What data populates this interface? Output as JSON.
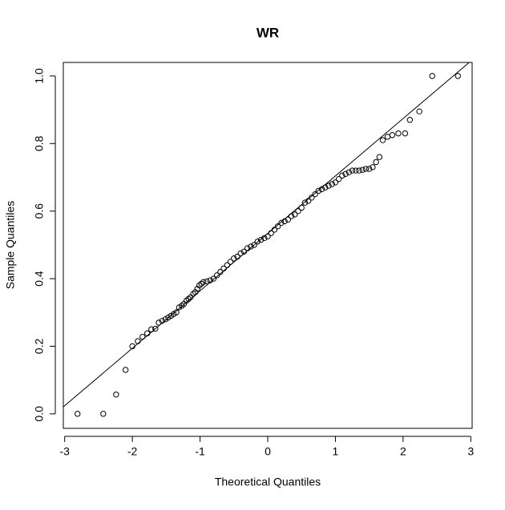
{
  "chart_data": {
    "type": "scatter",
    "title": "WR",
    "x_label": "Theoretical Quantiles",
    "y_label": "Sample Quantiles",
    "xlim": [
      -3.02,
      3.02
    ],
    "ylim": [
      -0.043,
      1.04
    ],
    "xticks": [
      -3,
      -2,
      -1,
      0,
      1,
      2,
      3
    ],
    "yticks": [
      {
        "value": 0,
        "label": "0.0"
      },
      0.2,
      0.4,
      0.6,
      0.8,
      {
        "value": 1,
        "label": "1.0"
      }
    ],
    "color": "#000000",
    "reference_line": {
      "slope": 0.17,
      "intercept": 0.534
    },
    "x": [
      -2.81,
      -2.43,
      -2.24,
      -2.1,
      -2.0,
      -1.92,
      -1.85,
      -1.78,
      -1.72,
      -1.66,
      -1.61,
      -1.56,
      -1.51,
      -1.47,
      -1.43,
      -1.39,
      -1.35,
      -1.31,
      -1.27,
      -1.24,
      -1.2,
      -1.17,
      -1.14,
      -1.1,
      -1.07,
      -1.04,
      -1.01,
      -0.98,
      -0.95,
      -0.9,
      -0.85,
      -0.8,
      -0.75,
      -0.7,
      -0.65,
      -0.6,
      -0.55,
      -0.5,
      -0.45,
      -0.4,
      -0.35,
      -0.3,
      -0.25,
      -0.2,
      -0.15,
      -0.1,
      -0.05,
      0.0,
      0.05,
      0.1,
      0.15,
      0.2,
      0.25,
      0.3,
      0.35,
      0.4,
      0.45,
      0.5,
      0.55,
      0.6,
      0.65,
      0.7,
      0.75,
      0.8,
      0.85,
      0.9,
      0.95,
      1.0,
      1.05,
      1.1,
      1.15,
      1.2,
      1.25,
      1.3,
      1.35,
      1.4,
      1.45,
      1.5,
      1.55,
      1.6,
      1.65,
      1.7,
      1.77,
      1.84,
      1.93,
      2.03,
      2.1,
      2.24,
      2.43,
      2.81
    ],
    "values": [
      0.0,
      0.0,
      0.057,
      0.13,
      0.2,
      0.215,
      0.228,
      0.238,
      0.25,
      0.252,
      0.27,
      0.275,
      0.28,
      0.285,
      0.29,
      0.295,
      0.3,
      0.315,
      0.32,
      0.325,
      0.335,
      0.34,
      0.345,
      0.355,
      0.36,
      0.37,
      0.38,
      0.385,
      0.39,
      0.392,
      0.395,
      0.4,
      0.41,
      0.42,
      0.43,
      0.44,
      0.45,
      0.46,
      0.465,
      0.475,
      0.48,
      0.49,
      0.495,
      0.5,
      0.51,
      0.515,
      0.52,
      0.525,
      0.535,
      0.545,
      0.555,
      0.565,
      0.57,
      0.575,
      0.585,
      0.59,
      0.6,
      0.61,
      0.625,
      0.63,
      0.64,
      0.65,
      0.66,
      0.665,
      0.67,
      0.675,
      0.68,
      0.685,
      0.695,
      0.705,
      0.71,
      0.715,
      0.72,
      0.72,
      0.72,
      0.722,
      0.725,
      0.725,
      0.73,
      0.745,
      0.76,
      0.81,
      0.82,
      0.825,
      0.83,
      0.83,
      0.87,
      0.895,
      1.0,
      1.0
    ]
  }
}
